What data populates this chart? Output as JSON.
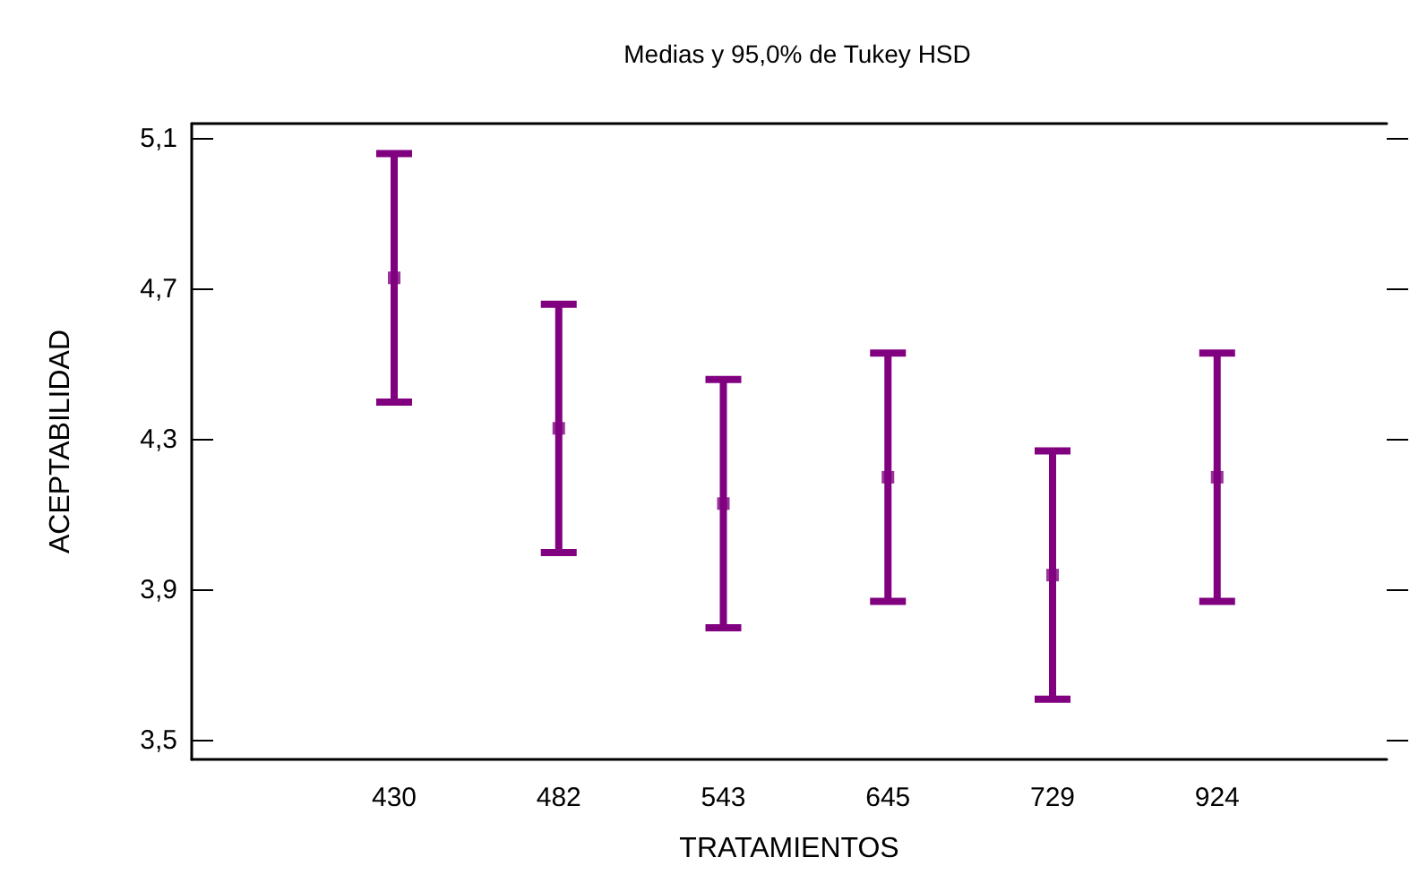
{
  "chart_data": {
    "type": "scatter",
    "title": "Medias y 95,0% de Tukey HSD",
    "xlabel": "TRATAMIENTOS",
    "ylabel": "ACEPTABILIDAD",
    "categories": [
      "430",
      "482",
      "543",
      "645",
      "729",
      "924"
    ],
    "series": [
      {
        "color": "#800080",
        "values": [
          4.73,
          4.33,
          4.13,
          4.2,
          3.94,
          4.2
        ],
        "errors": [
          0.33,
          0.33,
          0.33,
          0.33,
          0.33,
          0.33
        ]
      }
    ],
    "ylim": [
      3.45,
      5.14
    ],
    "yticks": [
      {
        "value": 3.5,
        "label": "3,5"
      },
      {
        "value": 3.9,
        "label": "3,9"
      },
      {
        "value": 4.3,
        "label": "4,3"
      },
      {
        "value": 4.7,
        "label": "4,7"
      },
      {
        "value": 5.1,
        "label": "5,1"
      }
    ],
    "marker": "square",
    "grid": false
  }
}
